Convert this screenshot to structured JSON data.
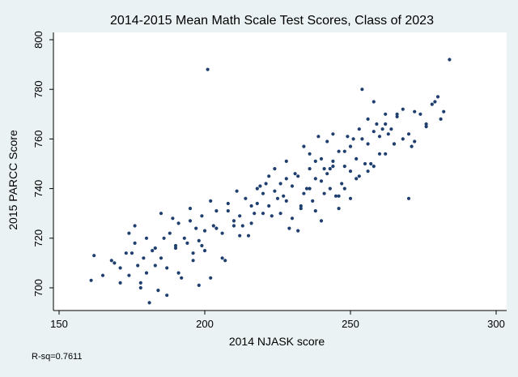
{
  "chart_data": {
    "type": "scatter",
    "title": "2014-2015 Mean Math Scale Test Scores, Class of 2023",
    "xlabel": "2014 NJASK score",
    "ylabel": "2015 PARCC Score",
    "xlim": [
      150,
      300
    ],
    "ylim": [
      693,
      802
    ],
    "xticks": [
      "150",
      "200",
      "250",
      "300"
    ],
    "xtick_values": [
      150,
      200,
      250,
      300
    ],
    "yticks": [
      "700",
      "720",
      "740",
      "760",
      "780",
      "800"
    ],
    "ytick_values": [
      700,
      720,
      740,
      760,
      780,
      800
    ],
    "grid": false,
    "legend": "none",
    "annotation": "R-sq=0.7611",
    "marker_color": "#1f3f6e",
    "background": "#eaf2f3",
    "plot_background": "#ffffff",
    "x": [
      161,
      162,
      165,
      169,
      171,
      173,
      174,
      176,
      177,
      178,
      179,
      180,
      181,
      182,
      183,
      184,
      185,
      186,
      187,
      188,
      189,
      190,
      191,
      192,
      193,
      194,
      195,
      196,
      197,
      198,
      199,
      200,
      201,
      202,
      202,
      204,
      206,
      208,
      210,
      212,
      214,
      216,
      218,
      220,
      222,
      224,
      226,
      228,
      230,
      232,
      234,
      236,
      238,
      240,
      242,
      244,
      246,
      248,
      250,
      252,
      254,
      256,
      258,
      260,
      262,
      264,
      266,
      268,
      270,
      272,
      274,
      276,
      278,
      280,
      282,
      284,
      206,
      210,
      215,
      220,
      225,
      230,
      235,
      240,
      245,
      250,
      255,
      260,
      265,
      208,
      213,
      218,
      223,
      228,
      233,
      238,
      243,
      248,
      253,
      258,
      263,
      203,
      211,
      216,
      221,
      226,
      231,
      236,
      241,
      246,
      251,
      256,
      261,
      266,
      271,
      180,
      185,
      190,
      195,
      200,
      224,
      236,
      242,
      248,
      232,
      238,
      244,
      250,
      228,
      246,
      252,
      256,
      234,
      240,
      244,
      262,
      268,
      219,
      227,
      239,
      247,
      259,
      217,
      229,
      237,
      243,
      253,
      265,
      212,
      222,
      233,
      241,
      249,
      257,
      196,
      199,
      204,
      207,
      174,
      176,
      178,
      183,
      187,
      191,
      198,
      168,
      171,
      175,
      262,
      258,
      254,
      270,
      272,
      276,
      279,
      281
    ],
    "y": [
      703,
      713,
      705,
      710,
      702,
      714,
      722,
      725,
      709,
      700,
      712,
      706,
      694,
      715,
      716,
      699,
      712,
      720,
      708,
      722,
      728,
      717,
      726,
      704,
      720,
      718,
      727,
      714,
      724,
      719,
      729,
      715,
      788,
      704,
      735,
      731,
      722,
      734,
      725,
      729,
      736,
      726,
      734,
      738,
      733,
      739,
      742,
      735,
      741,
      745,
      738,
      748,
      744,
      752,
      746,
      751,
      755,
      749,
      757,
      752,
      760,
      758,
      763,
      761,
      766,
      764,
      769,
      772,
      736,
      771,
      770,
      765,
      774,
      777,
      771,
      792,
      712,
      727,
      721,
      730,
      736,
      728,
      740,
      743,
      737,
      747,
      750,
      754,
      758,
      731,
      725,
      740,
      729,
      744,
      733,
      751,
      740,
      755,
      745,
      749,
      762,
      725,
      739,
      733,
      742,
      730,
      746,
      740,
      748,
      737,
      760,
      747,
      764,
      770,
      757,
      720,
      730,
      716,
      732,
      723,
      748,
      754,
      759,
      740,
      723,
      731,
      762,
      736,
      751,
      732,
      744,
      768,
      757,
      727,
      749,
      754,
      760,
      741,
      737,
      761,
      742,
      766,
      730,
      724,
      735,
      748,
      764,
      758,
      721,
      745,
      732,
      738,
      761,
      750,
      711,
      717,
      724,
      711,
      705,
      718,
      702,
      709,
      697,
      706,
      701,
      711,
      708,
      714,
      770,
      775,
      780,
      762,
      759,
      766,
      775,
      768
    ]
  }
}
